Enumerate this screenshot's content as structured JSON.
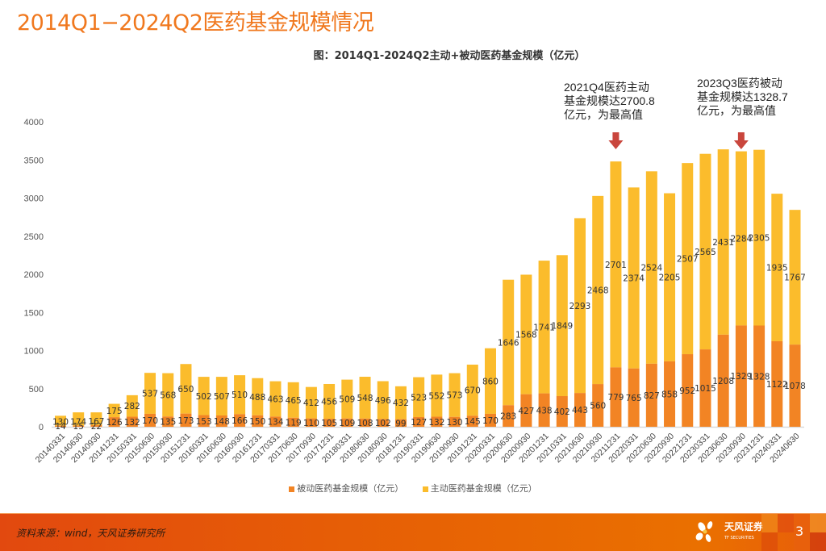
{
  "page": {
    "title": "2014Q1−2024Q2医药基金规模情况",
    "annotations": [
      {
        "lines": [
          "2021Q4医药主动",
          "基金规模达2700.8",
          "亿元，为最高值"
        ]
      },
      {
        "lines": [
          "2023Q3医药被动",
          "基金规模达1328.7",
          "亿元，为最高值"
        ]
      }
    ],
    "footer": {
      "source": "资料来源：wind，天风证券研究所",
      "logo_text": "天风证券",
      "logo_sub": "TF SECURITIES",
      "page_number": "3"
    }
  },
  "chart_data": {
    "type": "bar",
    "stacked": true,
    "title": "图：2014Q1-2024Q2主动+被动医药基金规模（亿元）",
    "xlabel": "",
    "ylabel": "",
    "ylim": [
      0,
      4000
    ],
    "yticks": [
      0,
      500,
      1000,
      1500,
      2000,
      2500,
      3000,
      3500,
      4000
    ],
    "grid": false,
    "legend_position": "bottom",
    "categories": [
      "20140331",
      "20140630",
      "20140930",
      "20141231",
      "20150331",
      "20150630",
      "20150930",
      "20151231",
      "20160331",
      "20160630",
      "20160930",
      "20161231",
      "20170331",
      "20170630",
      "20170930",
      "20171231",
      "20180331",
      "20180630",
      "20180930",
      "20181231",
      "20190331",
      "20190630",
      "20190930",
      "20191231",
      "20200331",
      "20200630",
      "20200930",
      "20201231",
      "20210331",
      "20210630",
      "20210930",
      "20211231",
      "20220331",
      "20220630",
      "20220930",
      "20221231",
      "20230331",
      "20230630",
      "20230930",
      "20231231",
      "20240331",
      "20240630"
    ],
    "series": [
      {
        "name": "被动医药基金规模（亿元）",
        "color": "#f28424",
        "values": [
          14,
          15,
          22,
          126,
          132,
          170,
          135,
          173,
          153,
          148,
          166,
          150,
          134,
          119,
          110,
          105,
          109,
          108,
          102,
          99,
          127,
          132,
          130,
          145,
          170,
          283,
          427,
          438,
          402,
          443,
          560,
          779,
          765,
          827,
          858,
          952,
          1015,
          1208,
          1329,
          1328,
          1122,
          1078
        ]
      },
      {
        "name": "主动医药基金规模（亿元）",
        "color": "#fbbc2c",
        "values": [
          130,
          174,
          167,
          175,
          282,
          537,
          568,
          650,
          502,
          507,
          510,
          488,
          463,
          465,
          412,
          456,
          509,
          548,
          496,
          432,
          523,
          552,
          573,
          670,
          860,
          1646,
          1568,
          1741,
          1849,
          2293,
          2468,
          2701,
          2374,
          2524,
          2205,
          2507,
          2565,
          2431,
          2284,
          2305,
          1935,
          1767
        ]
      }
    ],
    "annotations": [
      {
        "category": "20211231",
        "text": "2021Q4医药主动基金规模达2700.8亿元，为最高值",
        "marker": "down-arrow"
      },
      {
        "category": "20230930",
        "text": "2023Q3医药被动基金规模达1328.7亿元，为最高值",
        "marker": "down-arrow"
      }
    ],
    "arrow_color": "#c9463d"
  }
}
